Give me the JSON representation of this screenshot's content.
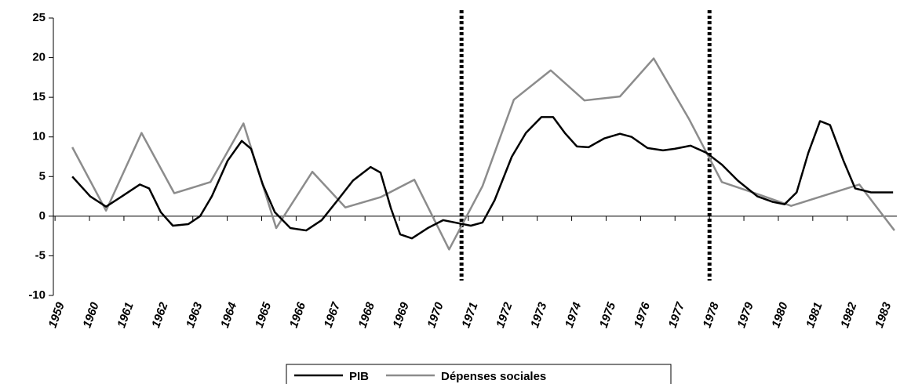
{
  "chart_data": {
    "type": "line",
    "xlim": [
      1958.45,
      1982.94
    ],
    "xticks": [
      1959,
      1960,
      1961,
      1962,
      1963,
      1964,
      1965,
      1966,
      1967,
      1968,
      1969,
      1970,
      1971,
      1972,
      1973,
      1974,
      1975,
      1976,
      1977,
      1978,
      1979,
      1980,
      1981,
      1982,
      1983
    ],
    "ylim": [
      -10,
      25
    ],
    "yticks": [
      -10,
      -5,
      0,
      5,
      10,
      15,
      20,
      25
    ],
    "vlines": [
      1970.3,
      1977.5
    ],
    "legend": "bottom",
    "series": [
      {
        "name": "PIB",
        "color": "#000000",
        "x": [
          1959.0,
          1959.52,
          1959.98,
          1960.44,
          1960.96,
          1961.23,
          1961.57,
          1961.92,
          1962.37,
          1962.71,
          1963.05,
          1963.51,
          1963.92,
          1964.19,
          1964.53,
          1964.88,
          1965.33,
          1965.79,
          1966.24,
          1966.7,
          1967.15,
          1967.66,
          1967.95,
          1968.25,
          1968.52,
          1968.86,
          1969.32,
          1969.77,
          1970.11,
          1970.57,
          1970.91,
          1971.26,
          1971.76,
          1972.17,
          1972.62,
          1972.96,
          1973.3,
          1973.65,
          1973.99,
          1974.44,
          1974.9,
          1975.24,
          1975.7,
          1976.15,
          1976.49,
          1976.95,
          1977.41,
          1977.86,
          1978.32,
          1978.89,
          1979.34,
          1979.68,
          1980.03,
          1980.37,
          1980.71,
          1981.0,
          1981.39,
          1981.73,
          1982.19,
          1982.83
        ],
        "values": [
          5,
          2.5,
          1.2,
          2.5,
          4,
          3.5,
          0.5,
          -1.2,
          -1,
          0,
          2.5,
          7,
          9.5,
          8.5,
          4,
          0.5,
          -1.5,
          -1.8,
          -0.5,
          2,
          4.5,
          6.2,
          5.5,
          1,
          -2.3,
          -2.8,
          -1.5,
          -0.5,
          -0.8,
          -1.2,
          -0.8,
          2,
          7.5,
          10.5,
          12.5,
          12.5,
          10.5,
          8.8,
          8.7,
          9.8,
          10.4,
          10,
          8.6,
          8.3,
          8.5,
          8.9,
          8,
          6.5,
          4.5,
          2.5,
          1.8,
          1.5,
          3,
          8,
          12,
          11.5,
          7,
          3.5,
          3,
          3
        ]
      },
      {
        "name": "Dépenses sociales",
        "color": "#8c8c8c",
        "x": [
          1959.0,
          1959.98,
          1961.01,
          1961.96,
          1963.01,
          1963.97,
          1964.92,
          1965.97,
          1966.93,
          1967.95,
          1968.93,
          1969.94,
          1970.91,
          1971.82,
          1972.89,
          1973.87,
          1974.9,
          1975.88,
          1976.9,
          1977.86,
          1978.89,
          1979.87,
          1981.85,
          1982.87
        ],
        "values": [
          8.7,
          0.7,
          10.5,
          2.9,
          4.3,
          11.7,
          -1.5,
          5.6,
          1.1,
          2.4,
          4.6,
          -4.2,
          3.8,
          14.7,
          18.4,
          14.6,
          15.1,
          19.9,
          12.3,
          4.3,
          2.8,
          1.3,
          4,
          -1.8
        ]
      }
    ]
  }
}
